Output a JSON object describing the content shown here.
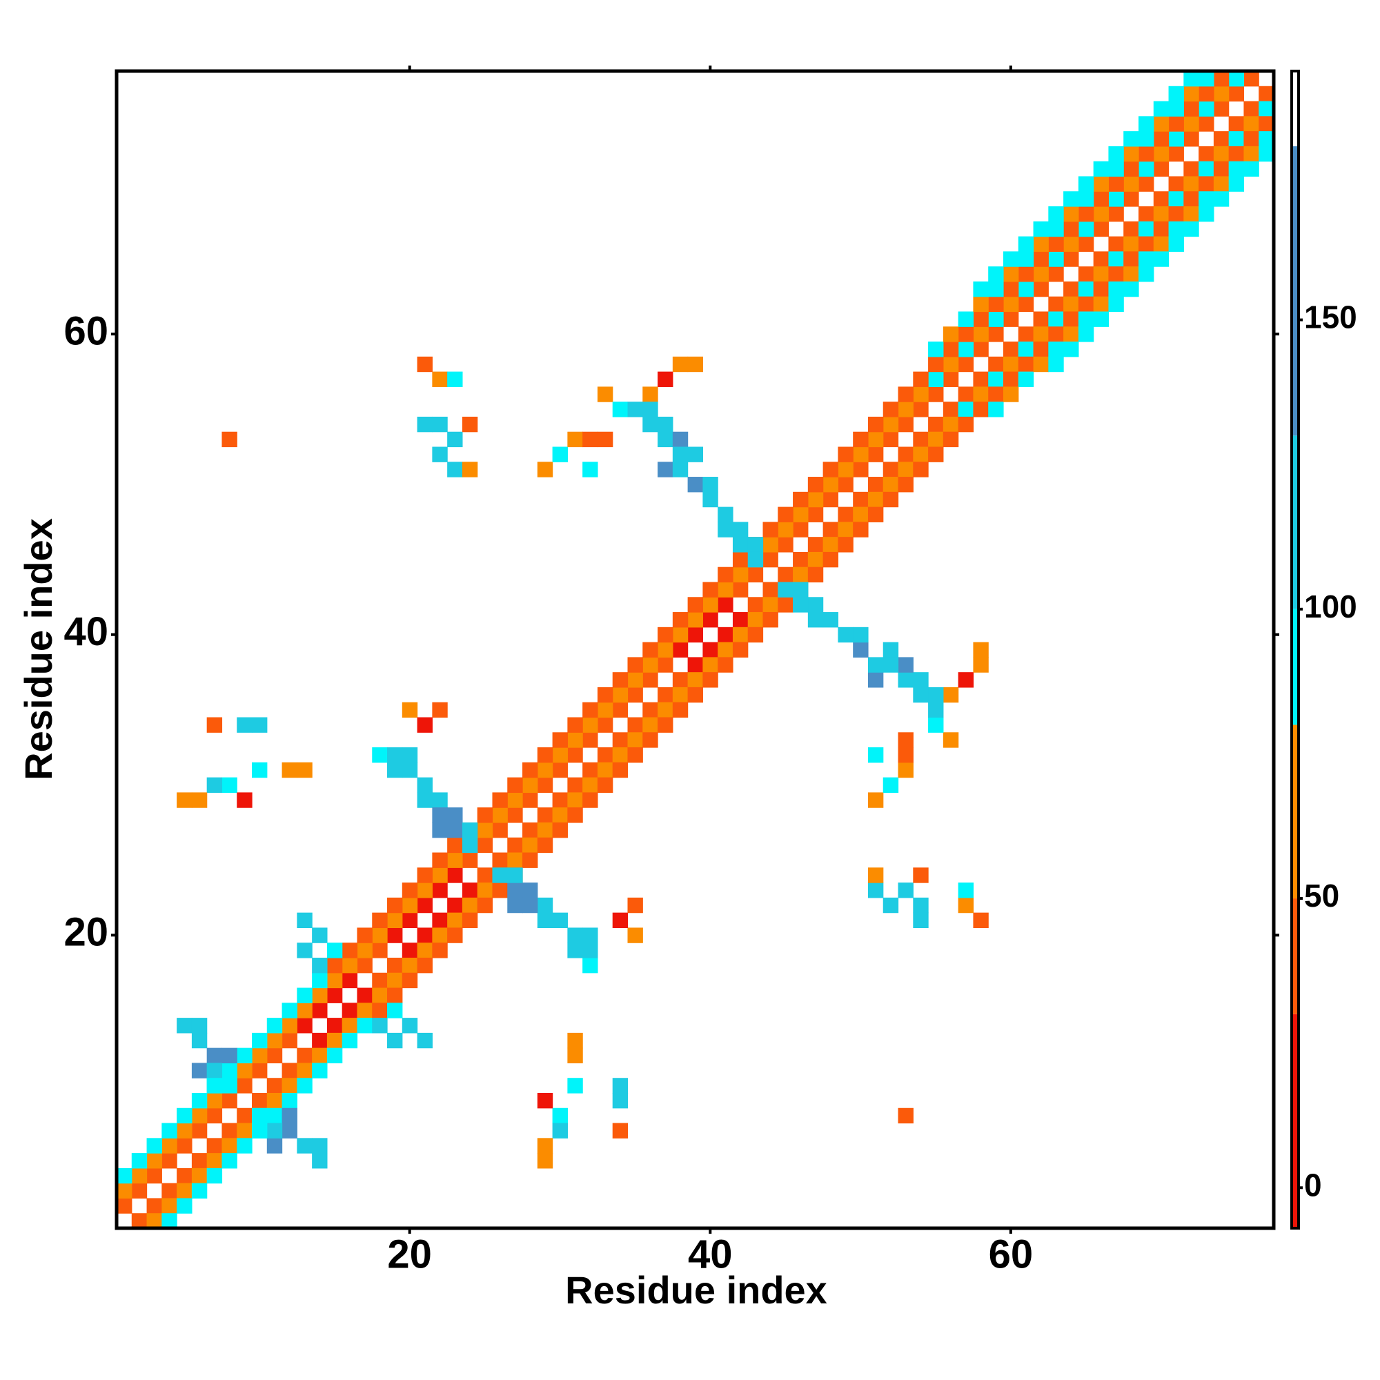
{
  "chart_data": {
    "type": "heatmap",
    "x_label": "Residue index",
    "y_label": "Residue index",
    "xlim": [
      0.5,
      77.5
    ],
    "ylim": [
      0.5,
      77.5
    ],
    "xticks": [
      20,
      40,
      60
    ],
    "yticks": [
      20,
      40,
      60
    ],
    "symmetric": true,
    "colorbar": {
      "range": [
        -7,
        193
      ],
      "ticks": [
        0,
        50,
        100,
        150
      ],
      "bins": [
        -7,
        30,
        50,
        80,
        100,
        130,
        180,
        193
      ],
      "colors": [
        "#ee1508",
        "#fb5a0a",
        "#fb8c00",
        "#00f4fa",
        "#1ecbe2",
        "#4a8ec6",
        "#ffffff"
      ]
    },
    "cells": [
      [
        1,
        2,
        40
      ],
      [
        2,
        3,
        40
      ],
      [
        3,
        4,
        40
      ],
      [
        4,
        5,
        40
      ],
      [
        5,
        6,
        40
      ],
      [
        6,
        7,
        40
      ],
      [
        7,
        8,
        40
      ],
      [
        8,
        9,
        40
      ],
      [
        9,
        10,
        40
      ],
      [
        10,
        11,
        40
      ],
      [
        11,
        12,
        40
      ],
      [
        12,
        13,
        40
      ],
      [
        13,
        14,
        15
      ],
      [
        14,
        15,
        15
      ],
      [
        15,
        16,
        15
      ],
      [
        16,
        17,
        15
      ],
      [
        17,
        18,
        40
      ],
      [
        18,
        19,
        40
      ],
      [
        19,
        20,
        15
      ],
      [
        20,
        21,
        15
      ],
      [
        21,
        22,
        15
      ],
      [
        22,
        23,
        15
      ],
      [
        23,
        24,
        15
      ],
      [
        24,
        25,
        40
      ],
      [
        25,
        26,
        40
      ],
      [
        26,
        27,
        40
      ],
      [
        27,
        28,
        40
      ],
      [
        28,
        29,
        40
      ],
      [
        29,
        30,
        40
      ],
      [
        30,
        31,
        40
      ],
      [
        31,
        32,
        40
      ],
      [
        32,
        33,
        40
      ],
      [
        33,
        34,
        40
      ],
      [
        34,
        35,
        40
      ],
      [
        35,
        36,
        40
      ],
      [
        36,
        37,
        40
      ],
      [
        37,
        38,
        40
      ],
      [
        38,
        39,
        15
      ],
      [
        39,
        40,
        15
      ],
      [
        40,
        41,
        15
      ],
      [
        41,
        42,
        15
      ],
      [
        42,
        43,
        40
      ],
      [
        43,
        44,
        40
      ],
      [
        44,
        45,
        40
      ],
      [
        45,
        46,
        40
      ],
      [
        46,
        47,
        40
      ],
      [
        47,
        48,
        40
      ],
      [
        48,
        49,
        40
      ],
      [
        49,
        50,
        40
      ],
      [
        50,
        51,
        40
      ],
      [
        51,
        52,
        40
      ],
      [
        52,
        53,
        40
      ],
      [
        53,
        54,
        40
      ],
      [
        54,
        55,
        40
      ],
      [
        55,
        56,
        40
      ],
      [
        56,
        57,
        40
      ],
      [
        57,
        58,
        40
      ],
      [
        58,
        59,
        40
      ],
      [
        59,
        60,
        40
      ],
      [
        60,
        61,
        40
      ],
      [
        61,
        62,
        40
      ],
      [
        62,
        63,
        40
      ],
      [
        63,
        64,
        40
      ],
      [
        64,
        65,
        40
      ],
      [
        65,
        66,
        40
      ],
      [
        66,
        67,
        40
      ],
      [
        67,
        68,
        40
      ],
      [
        68,
        69,
        40
      ],
      [
        69,
        70,
        40
      ],
      [
        70,
        71,
        40
      ],
      [
        71,
        72,
        40
      ],
      [
        72,
        73,
        40
      ],
      [
        73,
        74,
        40
      ],
      [
        74,
        75,
        40
      ],
      [
        75,
        76,
        40
      ],
      [
        76,
        77,
        40
      ],
      [
        1,
        3,
        65
      ],
      [
        2,
        4,
        65
      ],
      [
        3,
        5,
        65
      ],
      [
        4,
        6,
        65
      ],
      [
        5,
        7,
        65
      ],
      [
        6,
        8,
        65
      ],
      [
        7,
        9,
        65
      ],
      [
        8,
        10,
        65
      ],
      [
        9,
        11,
        65
      ],
      [
        10,
        12,
        65
      ],
      [
        11,
        13,
        65
      ],
      [
        12,
        14,
        65
      ],
      [
        13,
        15,
        65
      ],
      [
        14,
        16,
        65
      ],
      [
        15,
        17,
        65
      ],
      [
        16,
        18,
        65
      ],
      [
        17,
        19,
        65
      ],
      [
        18,
        20,
        65
      ],
      [
        19,
        21,
        65
      ],
      [
        20,
        22,
        65
      ],
      [
        21,
        23,
        65
      ],
      [
        22,
        24,
        65
      ],
      [
        23,
        25,
        65
      ],
      [
        24,
        26,
        65
      ],
      [
        25,
        27,
        65
      ],
      [
        26,
        28,
        65
      ],
      [
        27,
        29,
        65
      ],
      [
        28,
        30,
        65
      ],
      [
        29,
        31,
        65
      ],
      [
        30,
        32,
        65
      ],
      [
        31,
        33,
        65
      ],
      [
        32,
        34,
        65
      ],
      [
        33,
        35,
        65
      ],
      [
        34,
        36,
        65
      ],
      [
        35,
        37,
        65
      ],
      [
        36,
        38,
        65
      ],
      [
        37,
        39,
        65
      ],
      [
        38,
        40,
        65
      ],
      [
        39,
        41,
        65
      ],
      [
        40,
        42,
        65
      ],
      [
        41,
        43,
        65
      ],
      [
        42,
        44,
        65
      ],
      [
        43,
        45,
        65
      ],
      [
        44,
        46,
        65
      ],
      [
        45,
        47,
        65
      ],
      [
        46,
        48,
        65
      ],
      [
        47,
        49,
        65
      ],
      [
        48,
        50,
        65
      ],
      [
        49,
        51,
        65
      ],
      [
        50,
        52,
        65
      ],
      [
        51,
        53,
        65
      ],
      [
        52,
        54,
        65
      ],
      [
        53,
        55,
        65
      ],
      [
        54,
        56,
        65
      ],
      [
        55,
        57,
        90
      ],
      [
        56,
        58,
        65
      ],
      [
        57,
        59,
        90
      ],
      [
        58,
        60,
        65
      ],
      [
        59,
        61,
        90
      ],
      [
        60,
        62,
        65
      ],
      [
        61,
        63,
        90
      ],
      [
        62,
        64,
        65
      ],
      [
        63,
        65,
        90
      ],
      [
        64,
        66,
        65
      ],
      [
        65,
        67,
        90
      ],
      [
        66,
        68,
        65
      ],
      [
        67,
        69,
        90
      ],
      [
        68,
        70,
        65
      ],
      [
        69,
        71,
        90
      ],
      [
        70,
        72,
        65
      ],
      [
        71,
        73,
        90
      ],
      [
        72,
        74,
        65
      ],
      [
        73,
        75,
        90
      ],
      [
        74,
        76,
        65
      ],
      [
        75,
        77,
        90
      ],
      [
        1,
        4,
        90
      ],
      [
        2,
        5,
        90
      ],
      [
        3,
        6,
        90
      ],
      [
        4,
        7,
        90
      ],
      [
        5,
        8,
        90
      ],
      [
        6,
        9,
        90
      ],
      [
        7,
        10,
        90
      ],
      [
        8,
        11,
        90
      ],
      [
        9,
        12,
        90
      ],
      [
        10,
        13,
        90
      ],
      [
        11,
        14,
        90
      ],
      [
        12,
        15,
        90
      ],
      [
        13,
        16,
        90
      ],
      [
        14,
        17,
        90
      ],
      [
        15,
        18,
        40
      ],
      [
        16,
        19,
        40
      ],
      [
        17,
        20,
        40
      ],
      [
        18,
        21,
        40
      ],
      [
        19,
        22,
        40
      ],
      [
        20,
        23,
        40
      ],
      [
        21,
        24,
        40
      ],
      [
        22,
        25,
        40
      ],
      [
        23,
        26,
        40
      ],
      [
        24,
        27,
        40
      ],
      [
        25,
        28,
        40
      ],
      [
        26,
        29,
        40
      ],
      [
        27,
        30,
        40
      ],
      [
        28,
        31,
        40
      ],
      [
        29,
        32,
        40
      ],
      [
        30,
        33,
        40
      ],
      [
        31,
        34,
        40
      ],
      [
        32,
        35,
        40
      ],
      [
        33,
        36,
        40
      ],
      [
        34,
        37,
        40
      ],
      [
        35,
        38,
        40
      ],
      [
        36,
        39,
        40
      ],
      [
        37,
        40,
        40
      ],
      [
        38,
        41,
        40
      ],
      [
        39,
        42,
        40
      ],
      [
        40,
        43,
        40
      ],
      [
        41,
        44,
        40
      ],
      [
        42,
        45,
        40
      ],
      [
        43,
        46,
        40
      ],
      [
        44,
        47,
        40
      ],
      [
        45,
        48,
        40
      ],
      [
        46,
        49,
        40
      ],
      [
        47,
        50,
        40
      ],
      [
        48,
        51,
        40
      ],
      [
        49,
        52,
        40
      ],
      [
        50,
        53,
        40
      ],
      [
        51,
        54,
        40
      ],
      [
        52,
        55,
        40
      ],
      [
        53,
        56,
        40
      ],
      [
        54,
        57,
        40
      ],
      [
        55,
        58,
        40
      ],
      [
        56,
        59,
        40
      ],
      [
        57,
        60,
        40
      ],
      [
        58,
        61,
        40
      ],
      [
        59,
        62,
        40
      ],
      [
        60,
        63,
        40
      ],
      [
        61,
        64,
        40
      ],
      [
        62,
        65,
        40
      ],
      [
        63,
        66,
        40
      ],
      [
        64,
        67,
        40
      ],
      [
        65,
        68,
        40
      ],
      [
        66,
        69,
        40
      ],
      [
        67,
        70,
        40
      ],
      [
        68,
        71,
        40
      ],
      [
        69,
        72,
        40
      ],
      [
        70,
        73,
        40
      ],
      [
        71,
        74,
        40
      ],
      [
        72,
        75,
        40
      ],
      [
        73,
        76,
        40
      ],
      [
        74,
        77,
        40
      ],
      [
        55,
        59,
        90
      ],
      [
        56,
        60,
        65
      ],
      [
        57,
        61,
        90
      ],
      [
        58,
        62,
        65
      ],
      [
        59,
        63,
        90
      ],
      [
        60,
        64,
        65
      ],
      [
        61,
        65,
        90
      ],
      [
        62,
        66,
        65
      ],
      [
        63,
        67,
        90
      ],
      [
        64,
        68,
        65
      ],
      [
        65,
        69,
        90
      ],
      [
        66,
        70,
        65
      ],
      [
        67,
        71,
        90
      ],
      [
        68,
        72,
        65
      ],
      [
        69,
        73,
        90
      ],
      [
        70,
        74,
        65
      ],
      [
        71,
        75,
        90
      ],
      [
        72,
        76,
        65
      ],
      [
        73,
        77,
        90
      ],
      [
        58,
        63,
        90
      ],
      [
        59,
        64,
        90
      ],
      [
        60,
        65,
        90
      ],
      [
        61,
        66,
        90
      ],
      [
        62,
        67,
        90
      ],
      [
        63,
        68,
        90
      ],
      [
        64,
        69,
        90
      ],
      [
        65,
        70,
        90
      ],
      [
        66,
        71,
        90
      ],
      [
        67,
        72,
        90
      ],
      [
        68,
        73,
        90
      ],
      [
        69,
        74,
        90
      ],
      [
        70,
        75,
        90
      ],
      [
        71,
        76,
        90
      ],
      [
        72,
        77,
        90
      ],
      [
        33,
        56,
        65
      ],
      [
        34,
        55,
        90
      ],
      [
        36,
        56,
        65
      ],
      [
        35,
        55,
        115
      ],
      [
        36,
        55,
        115
      ],
      [
        36,
        54,
        115
      ],
      [
        37,
        54,
        115
      ],
      [
        37,
        53,
        115
      ],
      [
        38,
        53,
        150
      ],
      [
        38,
        52,
        115
      ],
      [
        39,
        52,
        115
      ],
      [
        37,
        51,
        150
      ],
      [
        38,
        51,
        115
      ],
      [
        39,
        50,
        150
      ],
      [
        40,
        50,
        115
      ],
      [
        40,
        49,
        115
      ],
      [
        41,
        48,
        115
      ],
      [
        41,
        47,
        115
      ],
      [
        42,
        47,
        115
      ],
      [
        42,
        46,
        115
      ],
      [
        43,
        46,
        115
      ],
      [
        43,
        45,
        115
      ],
      [
        18,
        32,
        90
      ],
      [
        19,
        32,
        115
      ],
      [
        20,
        32,
        115
      ],
      [
        19,
        31,
        115
      ],
      [
        20,
        31,
        115
      ],
      [
        21,
        30,
        115
      ],
      [
        21,
        29,
        115
      ],
      [
        22,
        29,
        115
      ],
      [
        22,
        28,
        150
      ],
      [
        23,
        28,
        150
      ],
      [
        22,
        27,
        150
      ],
      [
        23,
        27,
        150
      ],
      [
        24,
        27,
        115
      ],
      [
        24,
        26,
        115
      ],
      [
        20,
        35,
        65
      ],
      [
        21,
        34,
        15
      ],
      [
        22,
        35,
        40
      ],
      [
        5,
        14,
        115
      ],
      [
        6,
        14,
        115
      ],
      [
        6,
        13,
        115
      ],
      [
        7,
        12,
        150
      ],
      [
        8,
        12,
        150
      ],
      [
        6,
        11,
        150
      ],
      [
        7,
        11,
        115
      ],
      [
        7,
        10,
        90
      ],
      [
        8,
        10,
        90
      ],
      [
        13,
        21,
        115
      ],
      [
        14,
        20,
        115
      ],
      [
        13,
        19,
        115
      ],
      [
        14,
        18,
        115
      ],
      [
        15,
        19,
        90
      ],
      [
        21,
        54,
        115
      ],
      [
        22,
        54,
        115
      ],
      [
        23,
        53,
        115
      ],
      [
        22,
        52,
        115
      ],
      [
        23,
        51,
        115
      ],
      [
        24,
        54,
        40
      ],
      [
        24,
        51,
        65
      ],
      [
        8,
        30,
        90
      ],
      [
        7,
        30,
        115
      ],
      [
        6,
        29,
        65
      ],
      [
        9,
        29,
        15
      ],
      [
        5,
        29,
        65
      ],
      [
        10,
        31,
        90
      ],
      [
        12,
        31,
        65
      ],
      [
        13,
        31,
        65
      ],
      [
        9,
        34,
        115
      ],
      [
        10,
        34,
        115
      ],
      [
        7,
        34,
        40
      ],
      [
        29,
        51,
        65
      ],
      [
        30,
        52,
        90
      ],
      [
        31,
        53,
        65
      ],
      [
        32,
        53,
        40
      ],
      [
        33,
        53,
        40
      ],
      [
        32,
        51,
        90
      ],
      [
        21,
        58,
        40
      ],
      [
        22,
        57,
        65
      ],
      [
        23,
        57,
        90
      ],
      [
        8,
        53,
        40
      ],
      [
        37,
        57,
        15
      ],
      [
        38,
        58,
        65
      ],
      [
        39,
        58,
        65
      ]
    ]
  }
}
